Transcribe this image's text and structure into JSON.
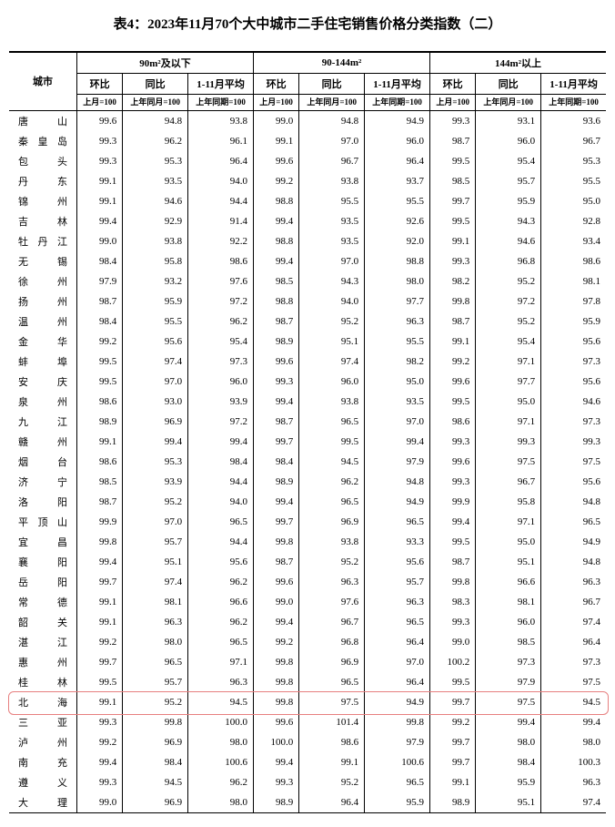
{
  "title": "表4：2023年11月70个大中城市二手住宅销售价格分类指数（二）",
  "col_group_headers": [
    "90m²及以下",
    "90-144m²",
    "144m²以上"
  ],
  "col_headers_l2": [
    "环比",
    "同比",
    "1-11月平均"
  ],
  "col_headers_l3": [
    "上月=100",
    "上年同月=100",
    "上年同期=100"
  ],
  "city_header": "城市",
  "highlight_city": "北海",
  "highlight_color": "#e77f7f",
  "rows": [
    {
      "city": "唐　山",
      "v": [
        99.6,
        94.8,
        93.8,
        99.0,
        94.8,
        94.9,
        99.3,
        93.1,
        93.6
      ]
    },
    {
      "city": "秦皇岛",
      "v": [
        99.3,
        96.2,
        96.1,
        99.1,
        97.0,
        96.0,
        98.7,
        96.0,
        96.7
      ]
    },
    {
      "city": "包　头",
      "v": [
        99.3,
        95.3,
        96.4,
        99.6,
        96.7,
        96.4,
        99.5,
        95.4,
        95.3
      ]
    },
    {
      "city": "丹　东",
      "v": [
        99.1,
        93.5,
        94.0,
        99.2,
        93.8,
        93.7,
        98.5,
        95.7,
        95.5
      ]
    },
    {
      "city": "锦　州",
      "v": [
        99.1,
        94.6,
        94.4,
        98.8,
        95.5,
        95.5,
        99.7,
        95.9,
        95.0
      ]
    },
    {
      "city": "吉　林",
      "v": [
        99.4,
        92.9,
        91.4,
        99.4,
        93.5,
        92.6,
        99.5,
        94.3,
        92.8
      ]
    },
    {
      "city": "牡丹江",
      "v": [
        99.0,
        93.8,
        92.2,
        98.8,
        93.5,
        92.0,
        99.1,
        94.6,
        93.4
      ]
    },
    {
      "city": "无　锡",
      "v": [
        98.4,
        95.8,
        98.6,
        99.4,
        97.0,
        98.8,
        99.3,
        96.8,
        98.6
      ]
    },
    {
      "city": "徐　州",
      "v": [
        97.9,
        93.2,
        97.6,
        98.5,
        94.3,
        98.0,
        98.2,
        95.2,
        98.1
      ]
    },
    {
      "city": "扬　州",
      "v": [
        98.7,
        95.9,
        97.2,
        98.8,
        94.0,
        97.7,
        99.8,
        97.2,
        97.8
      ]
    },
    {
      "city": "温　州",
      "v": [
        98.4,
        95.5,
        96.2,
        98.7,
        95.2,
        96.3,
        98.7,
        95.2,
        95.9
      ]
    },
    {
      "city": "金　华",
      "v": [
        99.2,
        95.6,
        95.4,
        98.9,
        95.1,
        95.5,
        99.1,
        95.4,
        95.6
      ]
    },
    {
      "city": "蚌　埠",
      "v": [
        99.5,
        97.4,
        97.3,
        99.6,
        97.4,
        98.2,
        99.2,
        97.1,
        97.3
      ]
    },
    {
      "city": "安　庆",
      "v": [
        99.5,
        97.0,
        96.0,
        99.3,
        96.0,
        95.0,
        99.6,
        97.7,
        95.6
      ]
    },
    {
      "city": "泉　州",
      "v": [
        98.6,
        93.0,
        93.9,
        99.4,
        93.8,
        93.5,
        99.5,
        95.0,
        94.6
      ]
    },
    {
      "city": "九　江",
      "v": [
        98.9,
        96.9,
        97.2,
        98.7,
        96.5,
        97.0,
        98.6,
        97.1,
        97.3
      ]
    },
    {
      "city": "赣　州",
      "v": [
        99.1,
        99.4,
        99.4,
        99.7,
        99.5,
        99.4,
        99.3,
        99.3,
        99.3
      ]
    },
    {
      "city": "烟　台",
      "v": [
        98.6,
        95.3,
        98.4,
        98.4,
        94.5,
        97.9,
        99.6,
        97.5,
        97.5
      ]
    },
    {
      "city": "济　宁",
      "v": [
        98.5,
        93.9,
        94.4,
        98.9,
        96.2,
        94.8,
        99.3,
        96.7,
        95.6
      ]
    },
    {
      "city": "洛　阳",
      "v": [
        98.7,
        95.2,
        94.0,
        99.4,
        96.5,
        94.9,
        99.9,
        95.8,
        94.8
      ]
    },
    {
      "city": "平顶山",
      "v": [
        99.9,
        97.0,
        96.5,
        99.7,
        96.9,
        96.5,
        99.4,
        97.1,
        96.5
      ]
    },
    {
      "city": "宜　昌",
      "v": [
        99.8,
        95.7,
        94.4,
        99.8,
        93.8,
        93.3,
        99.5,
        95.0,
        94.9
      ]
    },
    {
      "city": "襄　阳",
      "v": [
        99.4,
        95.1,
        95.6,
        98.7,
        95.2,
        95.6,
        98.7,
        95.1,
        94.8
      ]
    },
    {
      "city": "岳　阳",
      "v": [
        99.7,
        97.4,
        96.2,
        99.6,
        96.3,
        95.7,
        99.8,
        96.6,
        96.3
      ]
    },
    {
      "city": "常　德",
      "v": [
        99.1,
        98.1,
        96.6,
        99.0,
        97.6,
        96.3,
        98.3,
        98.1,
        96.7
      ]
    },
    {
      "city": "韶　关",
      "v": [
        99.1,
        96.3,
        96.2,
        99.4,
        96.7,
        96.5,
        99.3,
        96.0,
        97.4
      ]
    },
    {
      "city": "湛　江",
      "v": [
        99.2,
        98.0,
        96.5,
        99.2,
        96.8,
        96.4,
        99.0,
        98.5,
        96.4
      ]
    },
    {
      "city": "惠　州",
      "v": [
        99.7,
        96.5,
        97.1,
        99.8,
        96.9,
        97.0,
        100.2,
        97.3,
        97.3
      ]
    },
    {
      "city": "桂　林",
      "v": [
        99.5,
        95.7,
        96.3,
        99.8,
        96.5,
        96.4,
        99.5,
        97.9,
        97.5
      ]
    },
    {
      "city": "北　海",
      "v": [
        99.1,
        95.2,
        94.5,
        99.8,
        97.5,
        94.9,
        99.7,
        97.5,
        94.5
      ]
    },
    {
      "city": "三　亚",
      "v": [
        99.3,
        99.8,
        100.0,
        99.6,
        101.4,
        99.8,
        99.2,
        99.4,
        99.4
      ]
    },
    {
      "city": "泸　州",
      "v": [
        99.2,
        96.9,
        98.0,
        100.0,
        98.6,
        97.9,
        99.7,
        98.0,
        98.0
      ]
    },
    {
      "city": "南　充",
      "v": [
        99.4,
        98.4,
        100.6,
        99.4,
        99.1,
        100.6,
        99.7,
        98.4,
        100.3
      ]
    },
    {
      "city": "遵　义",
      "v": [
        99.3,
        94.5,
        96.2,
        99.3,
        95.2,
        96.5,
        99.1,
        95.9,
        96.3
      ]
    },
    {
      "city": "大　理",
      "v": [
        99.0,
        96.9,
        98.0,
        98.9,
        96.4,
        95.9,
        98.9,
        95.1,
        97.4
      ]
    }
  ]
}
